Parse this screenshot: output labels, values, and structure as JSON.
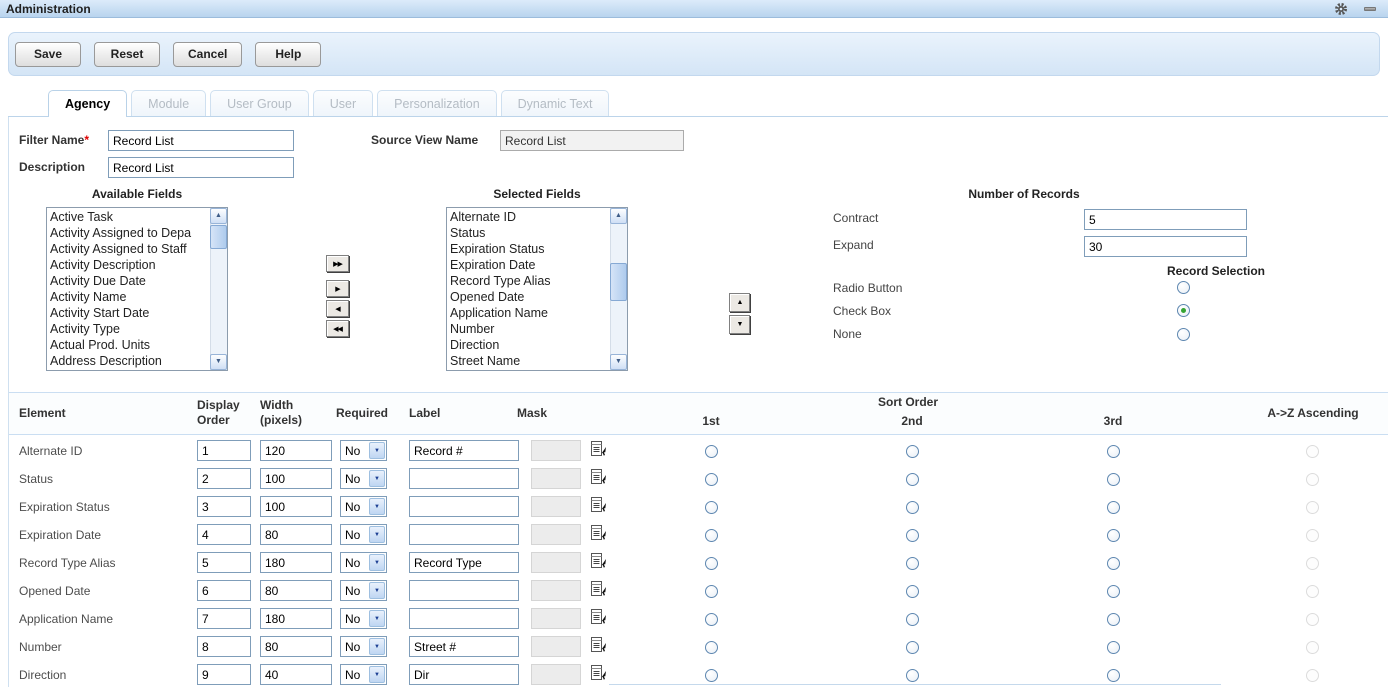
{
  "window": {
    "title": "Administration"
  },
  "toolbar": {
    "buttons": [
      {
        "label": "Save"
      },
      {
        "label": "Reset"
      },
      {
        "label": "Cancel"
      },
      {
        "label": "Help"
      }
    ]
  },
  "tabs": [
    {
      "label": "Agency",
      "active": true
    },
    {
      "label": "Module",
      "active": false
    },
    {
      "label": "User Group",
      "active": false
    },
    {
      "label": "User",
      "active": false
    },
    {
      "label": "Personalization",
      "active": false
    },
    {
      "label": "Dynamic Text",
      "active": false
    }
  ],
  "form": {
    "filter_name": {
      "label": "Filter Name",
      "required_marker": "*",
      "value": "Record List"
    },
    "description": {
      "label": "Description",
      "value": "Record List"
    },
    "source_view_name": {
      "label": "Source View Name",
      "value": "Record List"
    }
  },
  "fields_picker": {
    "available": {
      "title": "Available Fields",
      "items": [
        "Active Task",
        "Activity Assigned to Depa",
        "Activity Assigned to Staff",
        "Activity Description",
        "Activity Due Date",
        "Activity Name",
        "Activity Start Date",
        "Activity Type",
        "Actual Prod. Units",
        "Address Description"
      ]
    },
    "selected": {
      "title": "Selected Fields",
      "items": [
        "Alternate ID",
        "Status",
        "Expiration Status",
        "Expiration Date",
        "Record Type Alias",
        "Opened Date",
        "Application Name",
        "Number",
        "Direction",
        "Street Name"
      ]
    },
    "transfer_buttons": [
      {
        "name": "move-all-right",
        "glyph": "▶▶"
      },
      {
        "name": "move-right",
        "glyph": "▶"
      },
      {
        "name": "move-left",
        "glyph": "◀"
      },
      {
        "name": "move-all-left",
        "glyph": "◀◀"
      }
    ],
    "reorder_buttons": [
      {
        "name": "move-up",
        "glyph": "▲"
      },
      {
        "name": "move-down",
        "glyph": "▼"
      }
    ]
  },
  "number_of_records": {
    "title": "Number of Records",
    "contract": {
      "label": "Contract",
      "value": "5"
    },
    "expand": {
      "label": "Expand",
      "value": "30"
    }
  },
  "record_selection": {
    "title": "Record Selection",
    "options": [
      {
        "label": "Radio Button",
        "selected": false
      },
      {
        "label": "Check Box",
        "selected": true
      },
      {
        "label": "None",
        "selected": false
      }
    ]
  },
  "table": {
    "headers": {
      "element": "Element",
      "display_order": "Display Order",
      "width": "Width (pixels)",
      "required": "Required",
      "label": "Label",
      "mask": "Mask",
      "sort_order": "Sort Order",
      "sort_1st": "1st",
      "sort_2nd": "2nd",
      "sort_3rd": "3rd",
      "ascending": "A->Z Ascending"
    },
    "rows": [
      {
        "element": "Alternate ID",
        "display_order": "1",
        "width": "120",
        "required": "No",
        "label": "Record #",
        "mask": ""
      },
      {
        "element": "Status",
        "display_order": "2",
        "width": "100",
        "required": "No",
        "label": "",
        "mask": ""
      },
      {
        "element": "Expiration Status",
        "display_order": "3",
        "width": "100",
        "required": "No",
        "label": "",
        "mask": ""
      },
      {
        "element": "Expiration Date",
        "display_order": "4",
        "width": "80",
        "required": "No",
        "label": "",
        "mask": ""
      },
      {
        "element": "Record Type Alias",
        "display_order": "5",
        "width": "180",
        "required": "No",
        "label": "Record Type",
        "mask": ""
      },
      {
        "element": "Opened Date",
        "display_order": "6",
        "width": "80",
        "required": "No",
        "label": "",
        "mask": ""
      },
      {
        "element": "Application Name",
        "display_order": "7",
        "width": "180",
        "required": "No",
        "label": "",
        "mask": ""
      },
      {
        "element": "Number",
        "display_order": "8",
        "width": "80",
        "required": "No",
        "label": "Street #",
        "mask": ""
      },
      {
        "element": "Direction",
        "display_order": "9",
        "width": "40",
        "required": "No",
        "label": "Dir",
        "mask": ""
      }
    ]
  },
  "colors": {
    "titlebar_top": "#dcebfa",
    "titlebar_bottom": "#b9d4ee",
    "panel_border": "#bcd4ea",
    "input_border": "#7f9db9",
    "radio_selected": "#35a433",
    "inactive_tab_text": "#b4bcc4"
  }
}
